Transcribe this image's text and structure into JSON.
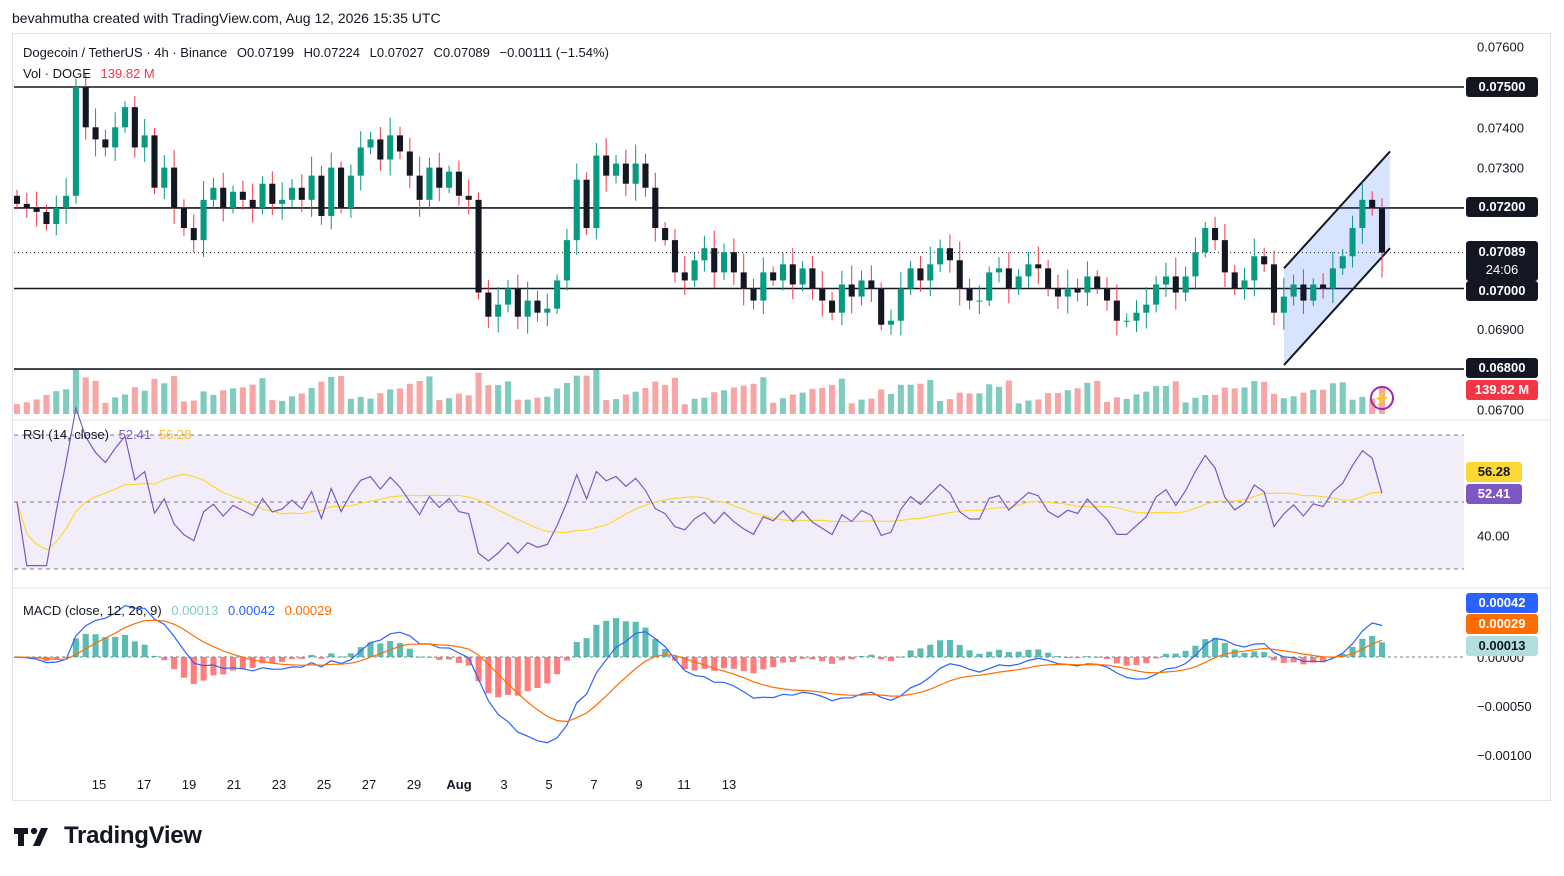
{
  "caption": "bevahmutha created with TradingView.com, Aug 12, 2026 15:35 UTC",
  "brand": "TradingView",
  "legend": {
    "symbol": "Dogecoin / TetherUS · 4h · Binance",
    "open": "O0.07199",
    "high": "H0.07224",
    "low": "L0.07027",
    "close": "C0.07089",
    "change": "−0.00111 (−1.54%)",
    "vol_label": "Vol · DOGE",
    "vol_value": "139.82 M",
    "rsi_label": "RSI (14, close)",
    "rsi_value": "52.41",
    "rsi_ma_value": "56.28",
    "macd_label": "MACD (close, 12, 26, 9)",
    "macd_hist": "0.00013",
    "macd_line": "0.00042",
    "macd_signal": "0.00029"
  },
  "badges": {
    "h_0750": "0.07500",
    "h_0720": "0.07200",
    "last_price": "0.07089",
    "countdown": "24:06",
    "h_0700": "0.07000",
    "h_0680": "0.06800",
    "volume": "139.82 M",
    "rsi_ma": "56.28",
    "rsi": "52.41",
    "macd_line": "0.00042",
    "macd_signal": "0.00029",
    "macd_hist": "0.00013"
  },
  "colors": {
    "up": "#089981",
    "down": "#f23645",
    "candle_up": "#131722",
    "candle_down": "#131722",
    "vol_up": "#7fcbbd",
    "vol_down": "#f7a6a6",
    "rsi": "#7e57c2",
    "rsi_ma": "#fdd835",
    "macd": "#2962ff",
    "signal": "#ff6d00",
    "channel": "#2962ff",
    "last_price": "#131722",
    "volume_badge": "#f23645"
  },
  "chart_data": {
    "type": "candlestick",
    "symbol": "DOGEUSDT",
    "interval": "4h",
    "price_axis": [
      "0.07600",
      "0.07500",
      "0.07400",
      "0.07300",
      "0.07200",
      "0.07100",
      "0.07000",
      "0.06900",
      "0.06800",
      "0.06700"
    ],
    "rsi_axis": [
      "40.00"
    ],
    "macd_axis": [
      "0.00000",
      "−0.00050",
      "−0.00100"
    ],
    "x_ticks": [
      "15",
      "17",
      "19",
      "21",
      "23",
      "25",
      "27",
      "29",
      "Aug",
      "3",
      "5",
      "7",
      "9",
      "11",
      "13"
    ],
    "horizontal_levels": [
      0.075,
      0.072,
      0.07,
      0.068
    ],
    "last": {
      "open": 0.07199,
      "high": 0.07224,
      "low": 0.07027,
      "close": 0.07089,
      "volume": "139.82 M",
      "rsi": 52.41,
      "rsi_ma": 56.28,
      "macd": 0.00042,
      "signal": 0.00029,
      "hist": 0.00013
    },
    "rising_channel": {
      "upper": [
        [
          "Aug 10",
          0.0705
        ],
        [
          "Aug 12",
          0.0734
        ]
      ],
      "lower": [
        [
          "Aug 10",
          0.0681
        ],
        [
          "Aug 12",
          0.071
        ]
      ]
    },
    "closes_approx": [
      0.0721,
      0.072,
      0.0719,
      0.0716,
      0.072,
      0.0723,
      0.075,
      0.074,
      0.0737,
      0.0735,
      0.074,
      0.0745,
      0.0735,
      0.0738,
      0.0725,
      0.073,
      0.072,
      0.0715,
      0.0712,
      0.0722,
      0.0725,
      0.072,
      0.0724,
      0.0722,
      0.072,
      0.0726,
      0.0721,
      0.0722,
      0.0725,
      0.0722,
      0.0728,
      0.0718,
      0.073,
      0.072,
      0.0728,
      0.0735,
      0.0737,
      0.0732,
      0.0738,
      0.0734,
      0.0728,
      0.0722,
      0.073,
      0.0725,
      0.0729,
      0.0723,
      0.0722,
      0.0699,
      0.0693,
      0.0696,
      0.07,
      0.0693,
      0.0697,
      0.0694,
      0.0695,
      0.0702,
      0.0712,
      0.0727,
      0.0715,
      0.0733,
      0.0728,
      0.0731,
      0.0726,
      0.0731,
      0.0725,
      0.0715,
      0.0712,
      0.0704,
      0.0702,
      0.0707,
      0.071,
      0.0704,
      0.0709,
      0.0704,
      0.07,
      0.0697,
      0.0704,
      0.0702,
      0.0706,
      0.0701,
      0.0705,
      0.07,
      0.0697,
      0.0694,
      0.0701,
      0.0698,
      0.0702,
      0.07,
      0.0691,
      0.0692,
      0.07,
      0.0705,
      0.0702,
      0.0706,
      0.071,
      0.0707,
      0.07,
      0.0697,
      0.0697,
      0.0704,
      0.0705,
      0.07,
      0.0703,
      0.0706,
      0.0705,
      0.07,
      0.0698,
      0.07,
      0.0699,
      0.0703,
      0.07,
      0.0697,
      0.0692,
      0.0692,
      0.0694,
      0.0696,
      0.0701,
      0.0703,
      0.0699,
      0.0703,
      0.0709,
      0.0715,
      0.0712,
      0.0704,
      0.07,
      0.0702,
      0.0708,
      0.0706,
      0.0694,
      0.0698,
      0.0701,
      0.0697,
      0.0701,
      0.07,
      0.0705,
      0.0708,
      0.0715,
      0.0722,
      0.072,
      0.0709
    ]
  }
}
